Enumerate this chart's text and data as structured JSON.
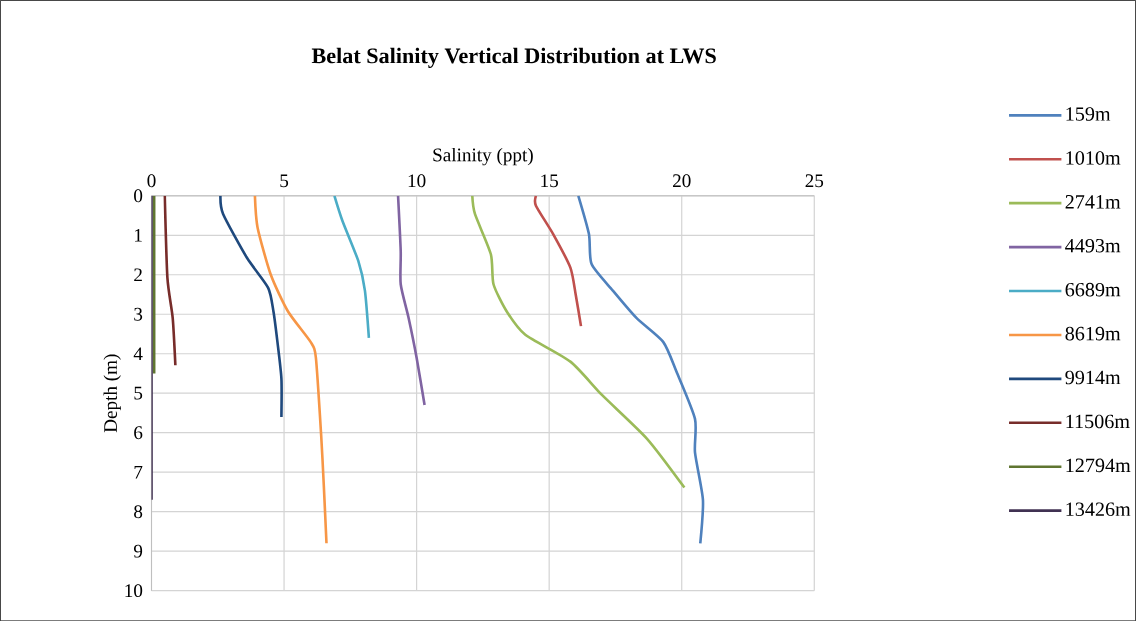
{
  "chart_data": {
    "type": "line",
    "title": "Belat Salinity Vertical Distribution at LWS",
    "xlabel": "Salinity (ppt)",
    "ylabel": "Depth (m)",
    "xlim": [
      0,
      25
    ],
    "xticks": [
      0,
      5,
      10,
      15,
      20,
      25
    ],
    "ylim": [
      10,
      0
    ],
    "yticks": [
      0,
      1,
      2,
      3,
      4,
      5,
      6,
      7,
      8,
      9,
      10
    ],
    "grid": true,
    "legend": "right",
    "series": [
      {
        "name": "159m",
        "color": "#4f81bd",
        "x": [
          16.1,
          16.5,
          16.6,
          17.4,
          18.3,
          19.3,
          19.8,
          20.5,
          20.5,
          20.8,
          20.7
        ],
        "values": [
          0,
          0.97,
          1.73,
          2.4,
          3.1,
          3.7,
          4.45,
          5.65,
          6.5,
          7.7,
          8.8
        ]
      },
      {
        "name": "1010m",
        "color": "#c0504d",
        "x": [
          14.5,
          14.5,
          15.15,
          15.8,
          16.0,
          16.2
        ],
        "values": [
          0,
          0.25,
          0.97,
          1.82,
          2.5,
          3.3
        ]
      },
      {
        "name": "2741m",
        "color": "#9bbb59",
        "x": [
          12.1,
          12.2,
          12.8,
          12.9,
          13.4,
          14.1,
          15.8,
          17.0,
          18.7,
          20.1
        ],
        "values": [
          0,
          0.46,
          1.48,
          2.24,
          2.93,
          3.52,
          4.2,
          5.05,
          6.16,
          7.39
        ]
      },
      {
        "name": "4493m",
        "color": "#8064a2",
        "x": [
          9.3,
          9.4,
          9.4,
          9.7,
          10.0,
          10.3
        ],
        "values": [
          0,
          1.4,
          2.24,
          3.1,
          4.1,
          5.3
        ]
      },
      {
        "name": "6689m",
        "color": "#4bacc6",
        "x": [
          6.9,
          7.2,
          7.8,
          8.05,
          8.2
        ],
        "values": [
          0,
          0.63,
          1.65,
          2.4,
          3.6
        ]
      },
      {
        "name": "8619m",
        "color": "#f79646",
        "x": [
          3.9,
          4.0,
          4.5,
          5.15,
          6.0,
          6.2,
          6.4,
          6.5,
          6.6
        ],
        "values": [
          0,
          0.8,
          2.0,
          2.93,
          3.7,
          4.1,
          6.07,
          7.35,
          8.8
        ]
      },
      {
        "name": "9914m",
        "color": "#1f497d",
        "x": [
          2.6,
          2.7,
          3.6,
          4.4,
          4.6,
          4.75,
          4.9,
          4.9
        ],
        "values": [
          0,
          0.46,
          1.57,
          2.33,
          2.93,
          3.7,
          4.63,
          5.6
        ]
      },
      {
        "name": "11506m",
        "color": "#772c2a",
        "x": [
          0.5,
          0.6,
          0.8,
          0.9
        ],
        "values": [
          0,
          2.08,
          3.1,
          4.29
        ]
      },
      {
        "name": "12794m",
        "color": "#5f7530",
        "x": [
          0.1,
          0.1
        ],
        "values": [
          0,
          4.5
        ]
      },
      {
        "name": "13426m",
        "color": "#403152",
        "x": [
          0,
          0
        ],
        "values": [
          0,
          7.7
        ]
      }
    ]
  }
}
